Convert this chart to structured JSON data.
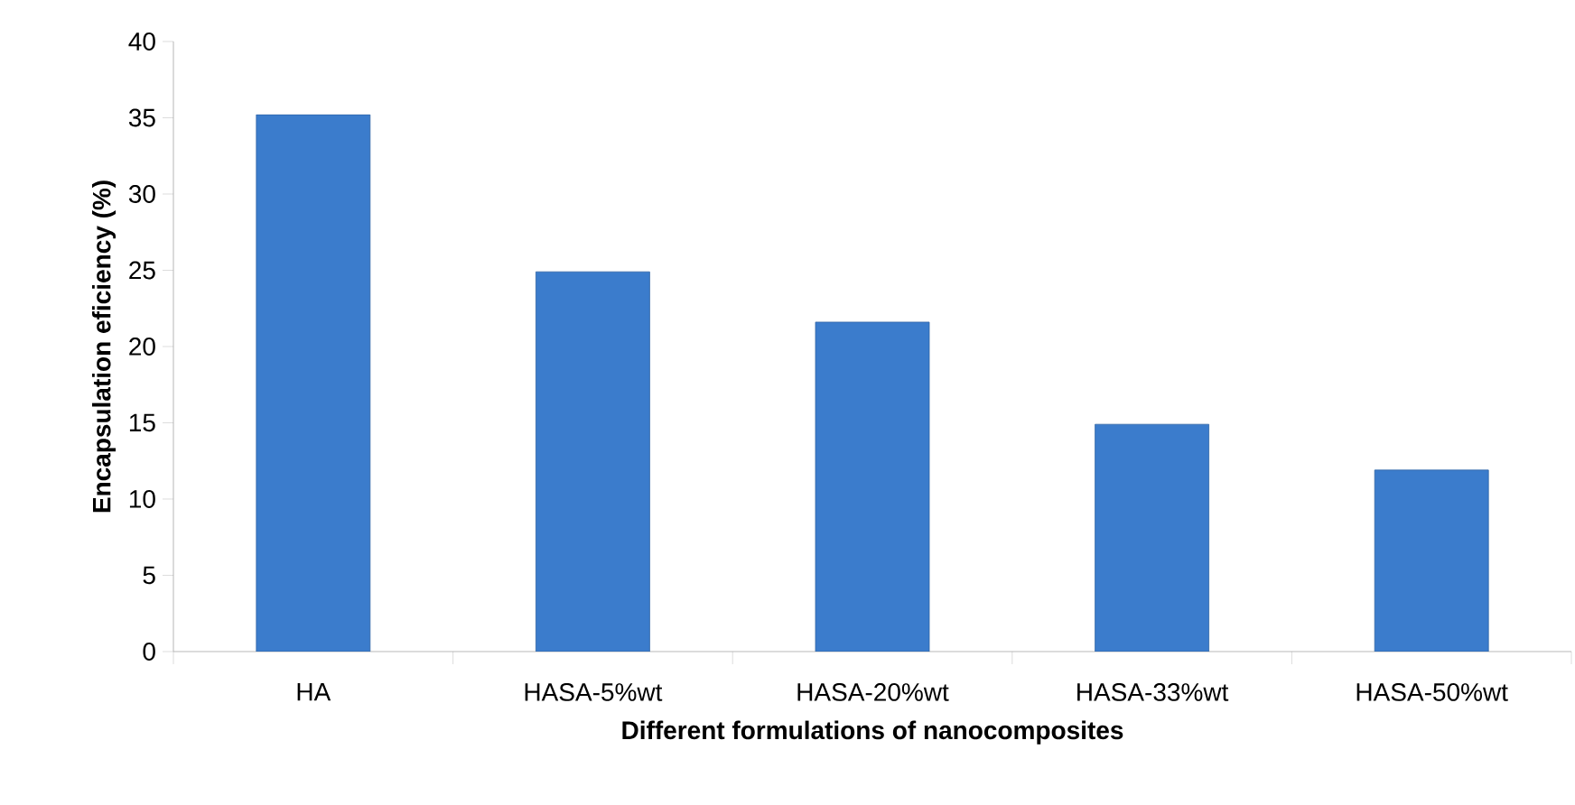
{
  "chart_data": {
    "type": "bar",
    "xlabel": "Different formulations of nanocomposites",
    "ylabel": "Encapsulation eficiency (%)",
    "categories": [
      "HA",
      "HASA-5%wt",
      "HASA-20%wt",
      "HASA-33%wt",
      "HASA-50%wt"
    ],
    "values": [
      35.2,
      24.9,
      21.6,
      14.9,
      11.9
    ],
    "color": "#3b7ccc",
    "ylim": [
      0,
      40
    ],
    "yticks": [
      0,
      5,
      10,
      15,
      20,
      25,
      30,
      35,
      40
    ],
    "grid": false
  }
}
